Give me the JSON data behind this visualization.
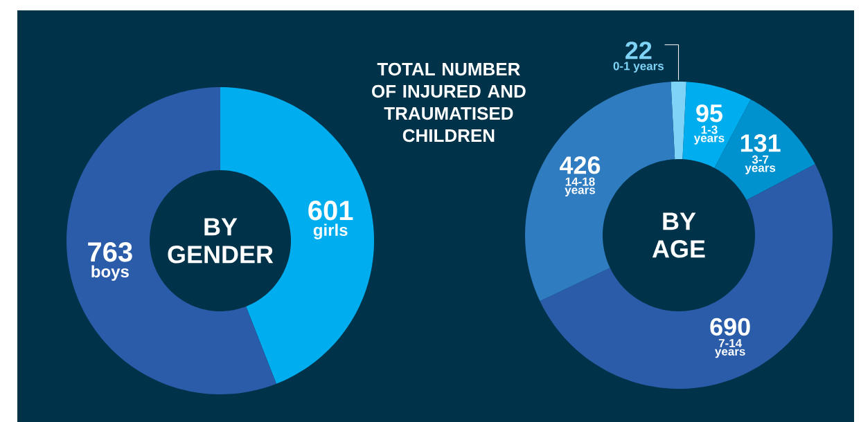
{
  "chart_data": [
    {
      "type": "donut",
      "title": "TOTAL NUMBER OF INJURED AND TRAUMATISED CHILDREN",
      "subtitle": "BY GENDER",
      "categories": [
        "girls",
        "boys"
      ],
      "values": [
        601,
        763
      ],
      "colors": [
        "#00aeef",
        "#2a5caa"
      ],
      "data_labels": true
    },
    {
      "type": "donut",
      "subtitle": "BY AGE",
      "categories": [
        "0-1 years",
        "1-3 years",
        "3-7 years",
        "7-14 years",
        "14-18 years"
      ],
      "values": [
        22,
        95,
        131,
        690,
        426
      ],
      "colors": [
        "#7fd3f7",
        "#00aeef",
        "#0092cf",
        "#2a5caa",
        "#2f7cc1"
      ],
      "data_labels": true
    }
  ]
}
